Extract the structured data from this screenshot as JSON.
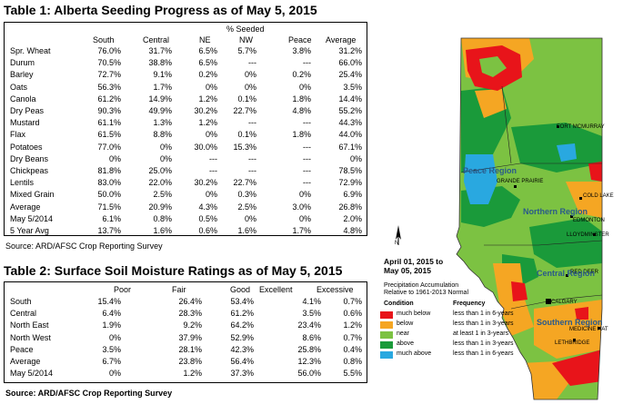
{
  "table1": {
    "title": "Table 1: Alberta Seeding Progress as of May 5, 2015",
    "group_header": "% Seeded",
    "columns": [
      "South",
      "Central",
      "NE",
      "NW",
      "Peace",
      "Average"
    ],
    "rows": [
      {
        "label": "Spr. Wheat",
        "values": [
          "76.0%",
          "31.7%",
          "6.5%",
          "5.7%",
          "3.8%",
          "31.2%"
        ]
      },
      {
        "label": "Durum",
        "values": [
          "70.5%",
          "38.8%",
          "6.5%",
          "---",
          "---",
          "66.0%"
        ]
      },
      {
        "label": "Barley",
        "values": [
          "72.7%",
          "9.1%",
          "0.2%",
          "0%",
          "0.2%",
          "25.4%"
        ]
      },
      {
        "label": "Oats",
        "values": [
          "56.3%",
          "1.7%",
          "0%",
          "0%",
          "0%",
          "3.5%"
        ]
      },
      {
        "label": "Canola",
        "values": [
          "61.2%",
          "14.9%",
          "1.2%",
          "0.1%",
          "1.8%",
          "14.4%"
        ]
      },
      {
        "label": "Dry Peas",
        "values": [
          "90.3%",
          "49.9%",
          "30.2%",
          "22.7%",
          "4.8%",
          "55.2%"
        ]
      },
      {
        "label": "Mustard",
        "values": [
          "61.1%",
          "1.3%",
          "1.2%",
          "---",
          "---",
          "44.3%"
        ]
      },
      {
        "label": "Flax",
        "values": [
          "61.5%",
          "8.8%",
          "0%",
          "0.1%",
          "1.8%",
          "44.0%"
        ]
      },
      {
        "label": "Potatoes",
        "values": [
          "77.0%",
          "0%",
          "30.0%",
          "15.3%",
          "---",
          "67.1%"
        ]
      },
      {
        "label": "Dry Beans",
        "values": [
          "0%",
          "0%",
          "---",
          "---",
          "---",
          "0%"
        ]
      },
      {
        "label": "Chickpeas",
        "values": [
          "81.8%",
          "25.0%",
          "---",
          "---",
          "---",
          "78.5%"
        ]
      },
      {
        "label": "Lentils",
        "values": [
          "83.0%",
          "22.0%",
          "30.2%",
          "22.7%",
          "---",
          "72.9%"
        ]
      },
      {
        "label": "Mixed Grain",
        "values": [
          "50.0%",
          "2.5%",
          "0%",
          "0.3%",
          "0%",
          "6.9%"
        ]
      },
      {
        "label": "Average",
        "values": [
          "71.5%",
          "20.9%",
          "4.3%",
          "2.5%",
          "3.0%",
          "26.8%"
        ]
      },
      {
        "label": "May 5/2014",
        "values": [
          "6.1%",
          "0.8%",
          "0.5%",
          "0%",
          "0%",
          "2.0%"
        ]
      },
      {
        "label": "5 Year Avg",
        "values": [
          "13.7%",
          "1.6%",
          "0.6%",
          "1.6%",
          "1.7%",
          "4.8%"
        ]
      }
    ],
    "source": "Source: ARD/AFSC Crop Reporting Survey"
  },
  "table2": {
    "title": "Table 2: Surface Soil Moisture Ratings as of May 5, 2015",
    "columns": [
      "Poor",
      "Fair",
      "Good",
      "Excellent",
      "Excessive"
    ],
    "rows": [
      {
        "label": "South",
        "values": [
          "15.4%",
          "26.4%",
          "53.4%",
          "4.1%",
          "0.7%"
        ]
      },
      {
        "label": "Central",
        "values": [
          "6.4%",
          "28.3%",
          "61.2%",
          "3.5%",
          "0.6%"
        ]
      },
      {
        "label": "North East",
        "values": [
          "1.9%",
          "9.2%",
          "64.2%",
          "23.4%",
          "1.2%"
        ]
      },
      {
        "label": "North West",
        "values": [
          "0%",
          "37.9%",
          "52.9%",
          "8.6%",
          "0.7%"
        ]
      },
      {
        "label": "Peace",
        "values": [
          "3.5%",
          "28.1%",
          "42.3%",
          "25.8%",
          "0.4%"
        ]
      },
      {
        "label": "Average",
        "values": [
          "6.7%",
          "23.8%",
          "56.4%",
          "12.3%",
          "0.8%"
        ]
      },
      {
        "label": "May 5/2014",
        "values": [
          "0%",
          "1.2%",
          "37.3%",
          "56.0%",
          "5.5%"
        ]
      }
    ],
    "source": "Source: ARD/AFSC Crop Reporting Survey"
  },
  "map": {
    "cities": [
      "FORT MCMURRAY",
      "GRANDE PRAIRIE",
      "COLD LAKE",
      "EDMONTON",
      "LLOYDMINSTER",
      "RED DEER",
      "CALGARY",
      "MEDICINE HAT",
      "LETHBRIDGE"
    ],
    "regions": [
      "Peace Region",
      "Northern Region",
      "Central Region",
      "Southern Region"
    ],
    "date_range": "April 01, 2015 to\nMay 05, 2015",
    "date_line1": "April 01, 2015 to",
    "date_line2": "May 05, 2015",
    "legend_title1": "Precipitation Accumulation",
    "legend_title2": "Relative to 1961-2013 Normal",
    "legend_col1": "Condition",
    "legend_col2": "Frequency",
    "legend": [
      {
        "condition": "much below",
        "frequency": "less than 1 in 6-years",
        "color": "#e8141a"
      },
      {
        "condition": "below",
        "frequency": "less than 1 in 3-years",
        "color": "#f5a623"
      },
      {
        "condition": "near",
        "frequency": "at least 1 in 3-years",
        "color": "#7cc242"
      },
      {
        "condition": "above",
        "frequency": "less than 1 in 3-years",
        "color": "#1a9a3a"
      },
      {
        "condition": "much above",
        "frequency": "less than 1 in 6-years",
        "color": "#29a8e0"
      }
    ],
    "north_label": "N"
  }
}
